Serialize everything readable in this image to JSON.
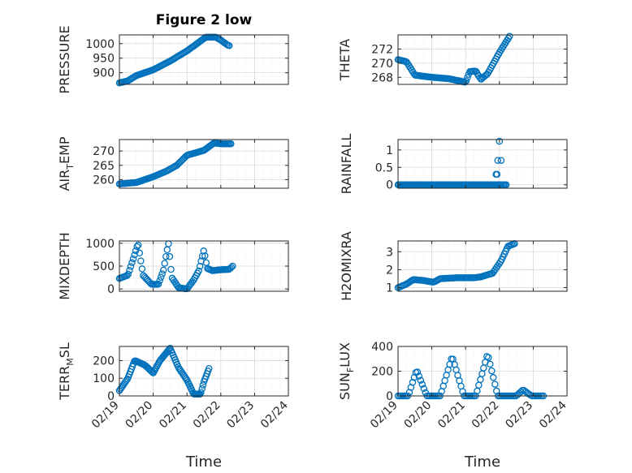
{
  "figure": {
    "title": "Figure 2 low",
    "xlabel": "Time",
    "xticks": [
      "02/19",
      "02/20",
      "02/21",
      "02/22",
      "02/23",
      "02/24"
    ],
    "marker_color": "#0072BD"
  },
  "chart_data": [
    {
      "type": "scatter",
      "marker": "circle",
      "ylabel": "PRESSURE",
      "ylim": [
        860,
        1030
      ],
      "yticks": [
        900,
        950,
        1000
      ],
      "grid": true,
      "anchors": [
        [
          0,
          865
        ],
        [
          0.25,
          872
        ],
        [
          0.5,
          890
        ],
        [
          1.0,
          910
        ],
        [
          1.5,
          940
        ],
        [
          2.0,
          975
        ],
        [
          2.3,
          1000
        ],
        [
          2.55,
          1022
        ],
        [
          2.85,
          1022
        ],
        [
          3.0,
          1012
        ],
        [
          3.2,
          995
        ],
        [
          3.25,
          993
        ]
      ]
    },
    {
      "type": "scatter",
      "marker": "circle",
      "ylabel": "THETA",
      "ylim": [
        267,
        274
      ],
      "yticks": [
        268,
        270,
        272
      ],
      "grid": true,
      "anchors": [
        [
          0,
          270.5
        ],
        [
          0.25,
          270.2
        ],
        [
          0.5,
          268.3
        ],
        [
          1.0,
          268
        ],
        [
          1.5,
          267.8
        ],
        [
          2.0,
          267.3
        ],
        [
          2.12,
          268.8
        ],
        [
          2.3,
          268.9
        ],
        [
          2.45,
          267.7
        ],
        [
          2.65,
          268.5
        ],
        [
          3.0,
          271.5
        ],
        [
          3.3,
          273.8
        ]
      ]
    },
    {
      "type": "scatter",
      "marker": "circle",
      "ylabel": "AIR_TEMP",
      "ylim": [
        257,
        274
      ],
      "yticks": [
        260,
        265,
        270
      ],
      "grid": true,
      "anchors": [
        [
          0,
          258.5
        ],
        [
          0.3,
          258.8
        ],
        [
          0.5,
          259
        ],
        [
          1.0,
          261
        ],
        [
          1.4,
          263
        ],
        [
          1.7,
          265
        ],
        [
          2.0,
          268.5
        ],
        [
          2.5,
          270.2
        ],
        [
          2.8,
          272.8
        ],
        [
          3.0,
          272.5
        ],
        [
          3.3,
          272.5
        ]
      ]
    },
    {
      "type": "scatter",
      "marker": "circle",
      "ylabel": "RAINFALL",
      "ylim": [
        -0.1,
        1.3
      ],
      "yticks": [
        0,
        0.5,
        1
      ],
      "grid": true,
      "anchors": [
        [
          0,
          0
        ],
        [
          3.2,
          0
        ]
      ],
      "extra_points": [
        [
          2.9,
          0.3
        ],
        [
          2.93,
          0.3
        ],
        [
          2.95,
          0.7
        ],
        [
          3.0,
          1.25
        ],
        [
          3.05,
          0.7
        ]
      ]
    },
    {
      "type": "scatter",
      "marker": "circle",
      "ylabel": "MIXDEPTH",
      "ylim": [
        -50,
        1050
      ],
      "yticks": [
        0,
        500,
        1000
      ],
      "grid": true,
      "anchors": [
        [
          0,
          230
        ],
        [
          0.25,
          300
        ],
        [
          0.45,
          750
        ],
        [
          0.55,
          1000
        ],
        [
          0.7,
          300
        ],
        [
          0.95,
          100
        ],
        [
          1.15,
          100
        ],
        [
          1.3,
          400
        ],
        [
          1.45,
          1000
        ],
        [
          1.55,
          250
        ],
        [
          1.75,
          30
        ],
        [
          2.0,
          0
        ],
        [
          2.2,
          200
        ],
        [
          2.35,
          400
        ],
        [
          2.5,
          850
        ],
        [
          2.6,
          450
        ],
        [
          2.75,
          400
        ],
        [
          3.0,
          420
        ],
        [
          3.25,
          430
        ],
        [
          3.35,
          500
        ]
      ]
    },
    {
      "type": "scatter",
      "marker": "circle",
      "ylabel": "H2OMIXRA",
      "ylim": [
        0.8,
        3.6
      ],
      "yticks": [
        1,
        2,
        3
      ],
      "grid": true,
      "anchors": [
        [
          0,
          1
        ],
        [
          0.25,
          1.2
        ],
        [
          0.45,
          1.45
        ],
        [
          0.75,
          1.4
        ],
        [
          1.05,
          1.3
        ],
        [
          1.25,
          1.5
        ],
        [
          1.75,
          1.55
        ],
        [
          2.25,
          1.55
        ],
        [
          2.45,
          1.6
        ],
        [
          2.8,
          1.8
        ],
        [
          3.05,
          2.5
        ],
        [
          3.25,
          3.3
        ],
        [
          3.45,
          3.45
        ]
      ]
    },
    {
      "type": "scatter",
      "marker": "circle",
      "ylabel": "TERR_MSL",
      "ylim": [
        0,
        280
      ],
      "yticks": [
        0,
        100,
        200
      ],
      "grid": true,
      "anchors": [
        [
          0,
          30
        ],
        [
          0.25,
          100
        ],
        [
          0.45,
          200
        ],
        [
          0.75,
          175
        ],
        [
          1.0,
          130
        ],
        [
          1.2,
          200
        ],
        [
          1.5,
          270
        ],
        [
          1.75,
          160
        ],
        [
          2.0,
          90
        ],
        [
          2.2,
          10
        ],
        [
          2.4,
          10
        ],
        [
          2.5,
          80
        ],
        [
          2.65,
          155
        ]
      ]
    },
    {
      "type": "scatter",
      "marker": "circle",
      "ylabel": "SUN_FLUX",
      "ylim": [
        0,
        400
      ],
      "yticks": [
        0,
        200,
        400
      ],
      "grid": true,
      "anchors": [
        [
          0,
          0
        ],
        [
          0.3,
          0
        ],
        [
          0.55,
          210
        ],
        [
          0.85,
          0
        ],
        [
          1.25,
          0
        ],
        [
          1.6,
          320
        ],
        [
          1.95,
          0
        ],
        [
          2.3,
          0
        ],
        [
          2.65,
          340
        ],
        [
          2.95,
          0
        ],
        [
          3.5,
          0
        ],
        [
          3.7,
          50
        ],
        [
          3.95,
          0
        ],
        [
          4.3,
          0
        ]
      ]
    }
  ]
}
